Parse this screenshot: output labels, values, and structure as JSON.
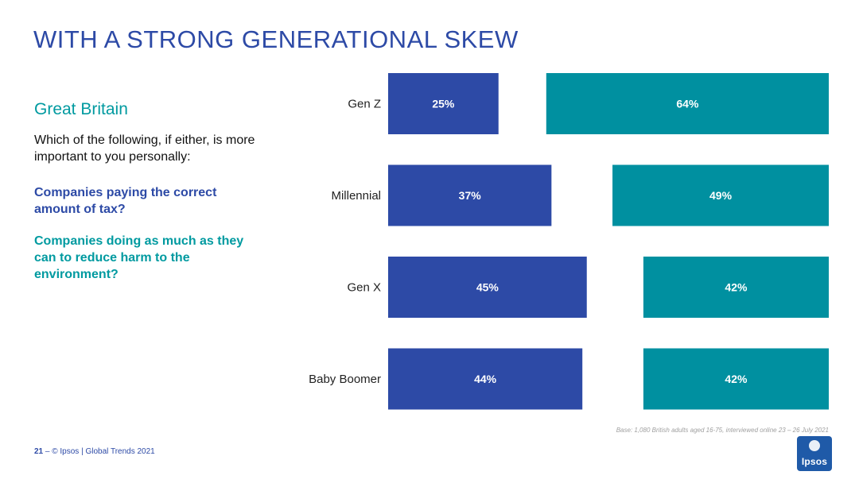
{
  "title": "WITH A STRONG GENERATIONAL SKEW",
  "region": "Great Britain",
  "question": "Which of the following, if either, is more important to you personally:",
  "options": [
    "Companies paying the correct amount of tax?",
    "Companies doing as much as they can to reduce harm to the environment?"
  ],
  "colors": {
    "tax": "#2d4aa6",
    "environment": "#0090a0",
    "accent": "#009aa0"
  },
  "base_note": "Base: 1,080 British adults aged 16-75, interviewed online 23 – 26 July 2021",
  "footer": {
    "page": "21",
    "dash": "–",
    "text": "© Ipsos | Global Trends 2021"
  },
  "logo_text": "Ipsos",
  "chart_data": {
    "type": "bar",
    "orientation": "horizontal",
    "categories": [
      "Gen Z",
      "Millennial",
      "Gen X",
      "Baby Boomer"
    ],
    "series": [
      {
        "values": [
          25,
          37,
          45,
          44
        ],
        "labels": [
          "25%",
          "37%",
          "45%",
          "44%"
        ],
        "color": "#2d4aa6"
      },
      {
        "values": [
          64,
          49,
          42,
          42
        ],
        "labels": [
          "64%",
          "49%",
          "42%",
          "42%"
        ],
        "color": "#0090a0"
      }
    ],
    "unit": "%",
    "grid": false,
    "legend": "none"
  }
}
